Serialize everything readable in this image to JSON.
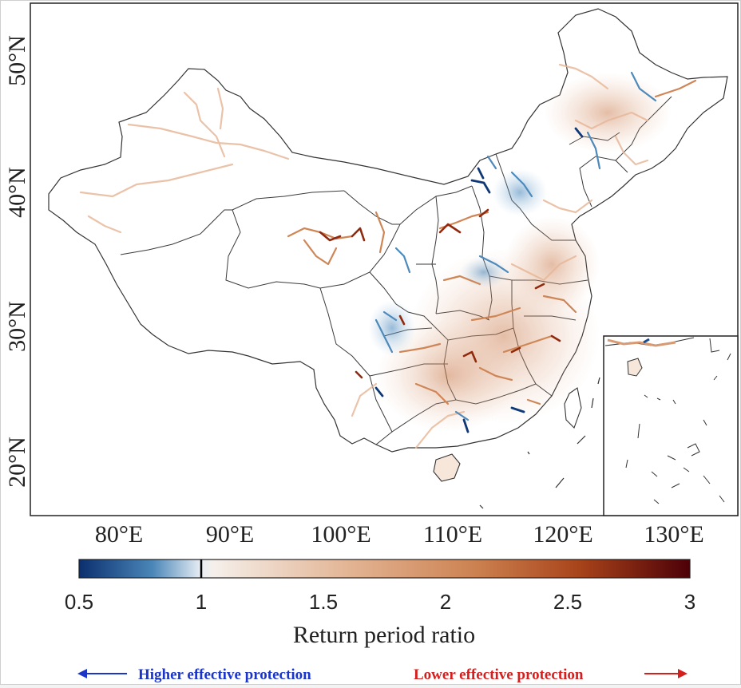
{
  "map": {
    "lat_labels": [
      "50°N",
      "40°N",
      "30°N",
      "20°N"
    ],
    "lon_labels": [
      "80°E",
      "90°E",
      "100°E",
      "110°E",
      "120°E",
      "130°E"
    ],
    "inset": "South China Sea"
  },
  "colorbar": {
    "ticks": [
      "0.5",
      "1",
      "1.5",
      "2",
      "2.5",
      "3"
    ],
    "title": "Return period ratio",
    "range": [
      0.5,
      3
    ],
    "marker_value": 1,
    "colors": {
      "low": "#0b2f6e",
      "mid": "#f5f1ee",
      "high": "#5a0008"
    }
  },
  "legend": {
    "left_text": "Higher effective protection",
    "left_color": "#1a35c8",
    "right_text": "Lower effective protection",
    "right_color": "#d41f1f"
  }
}
